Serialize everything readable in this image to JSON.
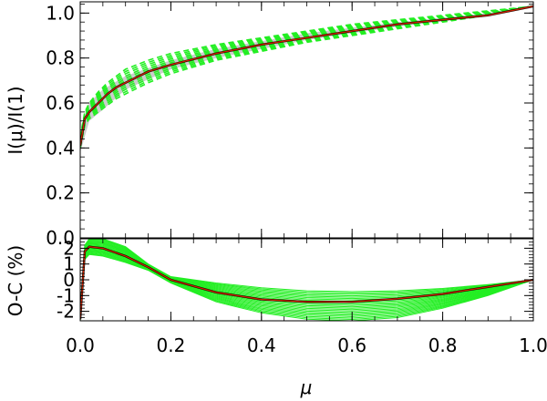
{
  "chart_data": [
    {
      "panel": "top",
      "type": "line",
      "ylabel": "I(μ)/I(1)",
      "xlim": [
        0.0,
        1.0
      ],
      "ylim": [
        0.0,
        1.05
      ],
      "yticks": [
        "0.0",
        "0.2",
        "0.4",
        "0.6",
        "0.8",
        "1.0"
      ],
      "ytick_values": [
        0.0,
        0.2,
        0.4,
        0.6,
        0.8,
        1.0
      ],
      "grid": false,
      "series": [
        {
          "style": "black-solid",
          "color": "#000000",
          "x": [
            0.0,
            0.01,
            0.02,
            0.04,
            0.06,
            0.08,
            0.1,
            0.15,
            0.2,
            0.3,
            0.4,
            0.5,
            0.6,
            0.7,
            0.8,
            0.9,
            1.0
          ],
          "y": [
            0.41,
            0.53,
            0.56,
            0.6,
            0.64,
            0.67,
            0.69,
            0.74,
            0.77,
            0.82,
            0.86,
            0.89,
            0.92,
            0.95,
            0.97,
            0.99,
            1.03
          ]
        },
        {
          "style": "red-solid",
          "color": "#cc2200",
          "x": [
            0.0,
            0.01,
            0.02,
            0.04,
            0.06,
            0.08,
            0.1,
            0.15,
            0.2,
            0.3,
            0.4,
            0.5,
            0.6,
            0.7,
            0.8,
            0.9,
            1.0
          ],
          "y": [
            0.41,
            0.53,
            0.56,
            0.6,
            0.64,
            0.67,
            0.69,
            0.74,
            0.77,
            0.82,
            0.86,
            0.89,
            0.92,
            0.95,
            0.97,
            0.99,
            1.03
          ]
        }
      ],
      "band": {
        "style": "grey-band",
        "color": "#bbbbbb",
        "x": [
          0.0,
          0.02,
          0.05,
          0.1,
          0.2,
          0.3,
          0.5,
          0.7,
          0.9,
          1.0
        ],
        "upper": [
          0.47,
          0.6,
          0.66,
          0.72,
          0.79,
          0.84,
          0.91,
          0.96,
          1.0,
          1.03
        ],
        "lower": [
          0.38,
          0.52,
          0.57,
          0.66,
          0.75,
          0.8,
          0.88,
          0.94,
          0.99,
          1.03
        ]
      },
      "ensemble": {
        "style": "green-dashed",
        "color": "#22ee22",
        "x": [
          0.0,
          0.01,
          0.02,
          0.04,
          0.06,
          0.08,
          0.1,
          0.15,
          0.2,
          0.3,
          0.4,
          0.5,
          0.6,
          0.7,
          0.8,
          0.9,
          1.0
        ],
        "upper": [
          0.45,
          0.56,
          0.6,
          0.65,
          0.69,
          0.72,
          0.75,
          0.79,
          0.82,
          0.86,
          0.89,
          0.92,
          0.95,
          0.97,
          0.99,
          1.01,
          1.03
        ],
        "lower": [
          0.4,
          0.5,
          0.53,
          0.56,
          0.59,
          0.62,
          0.64,
          0.69,
          0.73,
          0.79,
          0.83,
          0.87,
          0.9,
          0.93,
          0.96,
          0.99,
          1.03
        ],
        "count": 12
      }
    },
    {
      "panel": "bottom",
      "type": "line",
      "ylabel": "O-C (%)",
      "xlabel": "μ",
      "xlim": [
        0.0,
        1.0
      ],
      "ylim": [
        -2.6,
        2.6
      ],
      "xticks": [
        "0.0",
        "0.2",
        "0.4",
        "0.6",
        "0.8",
        "1.0"
      ],
      "xtick_values": [
        0.0,
        0.2,
        0.4,
        0.6,
        0.8,
        1.0
      ],
      "yticks": [
        "2",
        "1",
        "0",
        "-1",
        "-2"
      ],
      "ytick_values": [
        2,
        1,
        0,
        -1,
        -2
      ],
      "grid": false,
      "series": [
        {
          "style": "black-solid",
          "color": "#000000",
          "x": [
            0.0,
            0.01,
            0.02,
            0.05,
            0.1,
            0.15,
            0.2,
            0.3,
            0.4,
            0.5,
            0.6,
            0.7,
            0.8,
            0.9,
            1.0
          ],
          "y": [
            -2.5,
            1.8,
            2.1,
            2.0,
            1.5,
            0.8,
            0.0,
            -0.8,
            -1.25,
            -1.4,
            -1.4,
            -1.2,
            -0.9,
            -0.45,
            0.0
          ]
        },
        {
          "style": "red-solid",
          "color": "#cc2200",
          "x": [
            0.0,
            0.01,
            0.02,
            0.05,
            0.1,
            0.15,
            0.2,
            0.3,
            0.4,
            0.5,
            0.6,
            0.7,
            0.8,
            0.9,
            1.0
          ],
          "y": [
            -2.5,
            1.8,
            2.1,
            2.0,
            1.5,
            0.8,
            0.0,
            -0.8,
            -1.25,
            -1.4,
            -1.4,
            -1.2,
            -0.9,
            -0.45,
            0.0
          ]
        }
      ],
      "ensemble": {
        "style": "green-solid",
        "color": "#22ee22",
        "x": [
          0.0,
          0.01,
          0.02,
          0.05,
          0.1,
          0.15,
          0.2,
          0.3,
          0.4,
          0.5,
          0.6,
          0.7,
          0.8,
          0.9,
          1.0
        ],
        "upper": [
          -2.0,
          2.2,
          2.6,
          2.6,
          2.1,
          1.0,
          0.2,
          -0.2,
          -0.5,
          -0.7,
          -0.75,
          -0.7,
          -0.55,
          -0.3,
          0.0
        ],
        "lower": [
          -2.6,
          1.3,
          1.6,
          1.5,
          1.1,
          0.6,
          -0.2,
          -1.4,
          -2.1,
          -2.5,
          -2.6,
          -2.4,
          -1.8,
          -1.0,
          0.0
        ],
        "count": 22
      }
    }
  ]
}
